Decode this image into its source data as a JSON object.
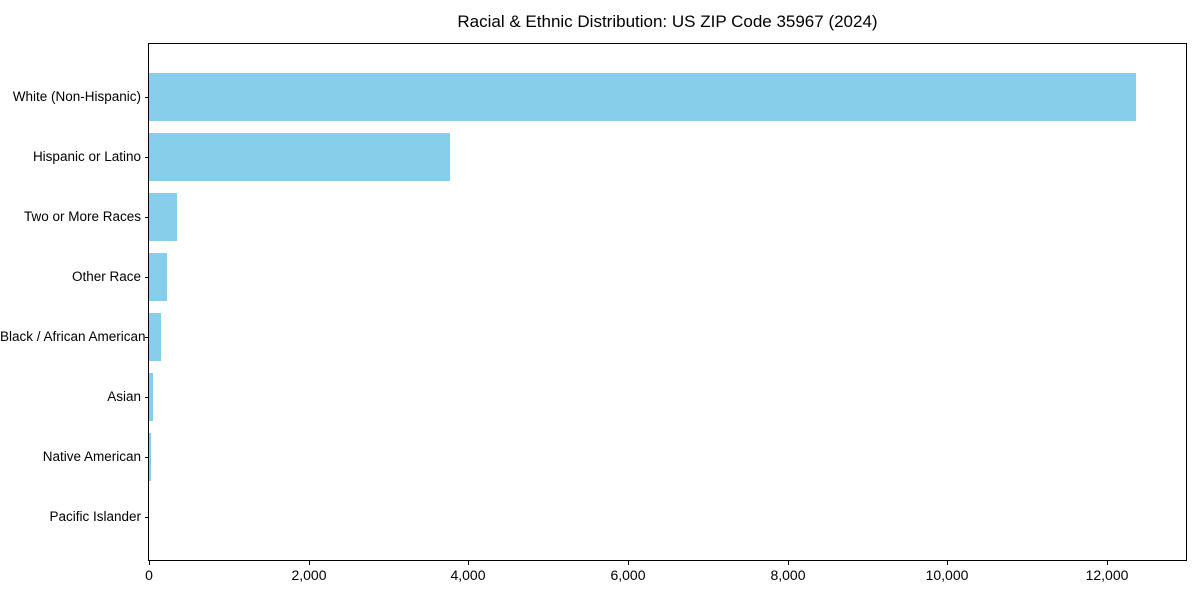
{
  "chart_data": {
    "type": "bar",
    "orientation": "horizontal",
    "title": "Racial & Ethnic Distribution: US ZIP Code 35967 (2024)",
    "categories": [
      "White (Non-Hispanic)",
      "Hispanic or Latino",
      "Two or More Races",
      "Other Race",
      "Black / African American",
      "Asian",
      "Native American",
      "Pacific Islander"
    ],
    "values": [
      12360,
      3770,
      350,
      225,
      150,
      55,
      30,
      0
    ],
    "xlabel": "",
    "ylabel": "",
    "xlim": [
      0,
      12990
    ],
    "xticks": [
      0,
      2000,
      4000,
      6000,
      8000,
      10000,
      12000
    ],
    "xtick_labels": [
      "0",
      "2,000",
      "4,000",
      "6,000",
      "8,000",
      "10,000",
      "12,000"
    ],
    "bar_color": "#87CEEB",
    "background": "#FFFFFF",
    "text_color": "#000000",
    "grid": false,
    "legend": null
  }
}
